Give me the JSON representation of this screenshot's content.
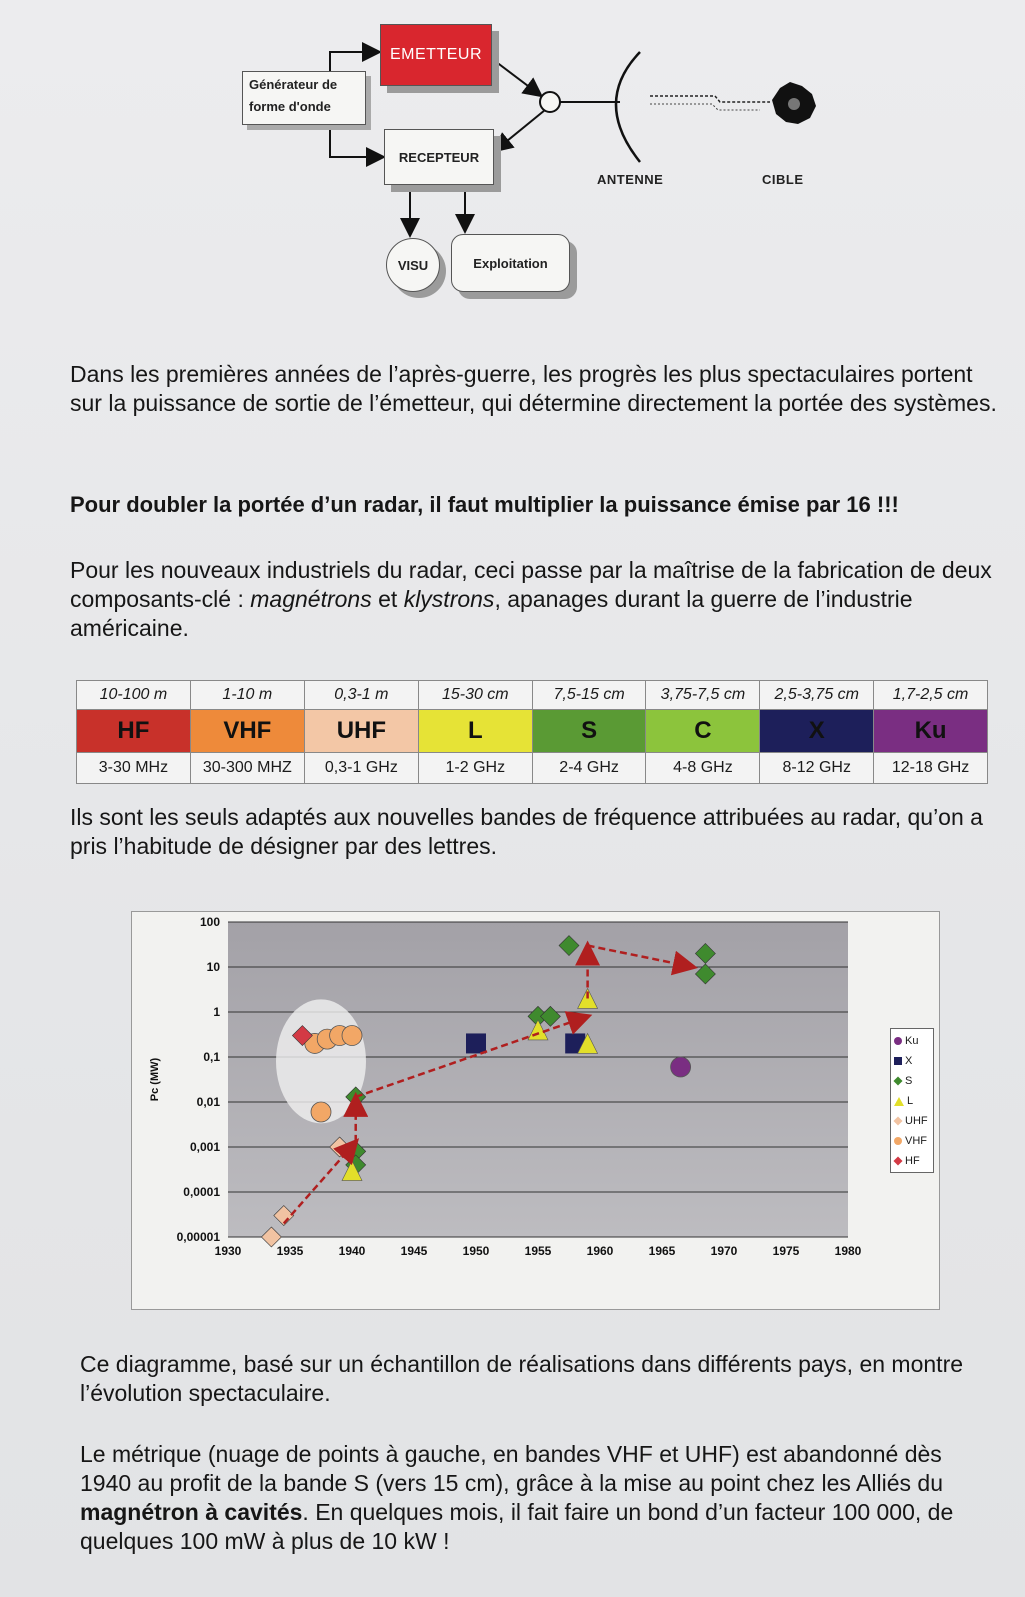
{
  "diagram": {
    "emetteur": "EMETTEUR",
    "generateur_line1": "Générateur de",
    "generateur_line2": "forme d'onde",
    "recepteur": "RECEPTEUR",
    "visu": "VISU",
    "exploitation": "Exploitation",
    "antenne": "ANTENNE",
    "cible": "CIBLE"
  },
  "text": {
    "p1": "Dans les premières années de l’après-guerre, les progrès les plus spectaculaires portent sur la puissance de sortie de l’émetteur, qui détermine directement la portée des systèmes.",
    "p2": "Pour doubler la portée d’un radar, il faut multiplier la puissance émise par 16  !!!",
    "p3_a": "Pour les nouveaux industriels du radar, ceci passe par la maîtrise de la fabrication de deux composants-clé : ",
    "p3_m": "magnétrons",
    "p3_b": " et ",
    "p3_k": "klystrons",
    "p3_c": ", apanages durant la guerre de l’industrie américaine.",
    "p4": "Ils sont les seuls adaptés aux nouvelles bandes de fréquence attribuées au radar, qu’on a pris l’habitude de désigner par des lettres.",
    "p5": "Ce diagramme, basé sur un échantillon de réalisations dans différents pays, en montre l’évolution spectaculaire.",
    "p6_a": "Le métrique (nuage de points à gauche, en bandes VHF et UHF) est abandonné dès 1940 au profit de la bande S (vers 15 cm), grâce à la mise au point chez les Alliés du ",
    "p6_b": "magnétron à cavités",
    "p6_c": ". En quelques mois, il fait faire un bond d’un facteur 100 000, de quelques 100 mW à plus de 10 kW !"
  },
  "bands": [
    {
      "wavelength": "10-100 m",
      "letter": "HF",
      "frequency": "3-30 MHz",
      "color": "#c8312a"
    },
    {
      "wavelength": "1-10 m",
      "letter": "VHF",
      "frequency": "30-300 MHZ",
      "color": "#ee8a3a"
    },
    {
      "wavelength": "0,3-1 m",
      "letter": "UHF",
      "frequency": "0,3-1 GHz",
      "color": "#f3c7a6"
    },
    {
      "wavelength": "15-30 cm",
      "letter": "L",
      "frequency": "1-2 GHz",
      "color": "#e6e336"
    },
    {
      "wavelength": "7,5-15 cm",
      "letter": "S",
      "frequency": "2-4 GHz",
      "color": "#5a9a34"
    },
    {
      "wavelength": "3,75-7,5 cm",
      "letter": "C",
      "frequency": "4-8 GHz",
      "color": "#8cc43c"
    },
    {
      "wavelength": "2,5-3,75 cm",
      "letter": "X",
      "frequency": "8-12 GHz",
      "color": "#1d1f5a"
    },
    {
      "wavelength": "1,7-2,5 cm",
      "letter": "Ku",
      "frequency": "12-18 GHz",
      "color": "#7a2e82"
    }
  ],
  "chart_data": {
    "type": "scatter",
    "ylabel": "Pc (MW)",
    "xlabel": "",
    "title": "",
    "x_ticks": [
      "1930",
      "1935",
      "1940",
      "1945",
      "1950",
      "1955",
      "1960",
      "1965",
      "1970",
      "1975",
      "1980"
    ],
    "y_ticks": [
      "100",
      "10",
      "1",
      "0,1",
      "0,01",
      "0,001",
      "0,0001",
      "0,00001"
    ],
    "xlim": [
      1930,
      1980
    ],
    "ylim": [
      1e-05,
      100
    ],
    "y_scale": "log",
    "grid": true,
    "legend_position": "right",
    "series": [
      {
        "name": "Ku",
        "marker": "circle",
        "color": "#7a2e82",
        "points": [
          [
            1966.5,
            0.06
          ]
        ]
      },
      {
        "name": "X",
        "marker": "square",
        "color": "#1d1f5a",
        "points": [
          [
            1950,
            0.2
          ],
          [
            1958,
            0.2
          ]
        ]
      },
      {
        "name": "S",
        "marker": "diamond",
        "color": "#3f8a2e",
        "points": [
          [
            1940.3,
            0.013
          ],
          [
            1940.3,
            0.0008
          ],
          [
            1940.3,
            0.0004
          ],
          [
            1955,
            0.8
          ],
          [
            1956,
            0.8
          ],
          [
            1957.5,
            30
          ],
          [
            1968.5,
            20
          ],
          [
            1968.5,
            7
          ]
        ]
      },
      {
        "name": "L",
        "marker": "triangle",
        "color": "#e2df2a",
        "points": [
          [
            1940,
            0.0003
          ],
          [
            1955,
            0.4
          ],
          [
            1959,
            0.2
          ],
          [
            1959,
            2
          ]
        ]
      },
      {
        "name": "UHF",
        "marker": "diamond",
        "color": "#f1c3a2",
        "points": [
          [
            1933.5,
            1e-05
          ],
          [
            1934.5,
            3e-05
          ],
          [
            1939,
            0.001
          ]
        ]
      },
      {
        "name": "VHF",
        "marker": "circle",
        "color": "#f2a766",
        "points": [
          [
            1937.5,
            0.006
          ],
          [
            1937,
            0.2
          ],
          [
            1938,
            0.25
          ],
          [
            1939,
            0.3
          ],
          [
            1940,
            0.3
          ]
        ]
      },
      {
        "name": "HF",
        "marker": "diamond",
        "color": "#d33a45",
        "points": [
          [
            1936,
            0.3
          ]
        ]
      }
    ],
    "trend_arrows": [
      [
        [
          1934.5,
          2e-05
        ],
        [
          1940.3,
          0.0013
        ]
      ],
      [
        [
          1940.3,
          0.0013
        ],
        [
          1940.3,
          0.013
        ]
      ],
      [
        [
          1940.3,
          0.013
        ],
        [
          1959,
          0.8
        ]
      ],
      [
        [
          1959,
          2
        ],
        [
          1959,
          30
        ]
      ],
      [
        [
          1959,
          30
        ],
        [
          1967.5,
          10
        ]
      ]
    ]
  }
}
